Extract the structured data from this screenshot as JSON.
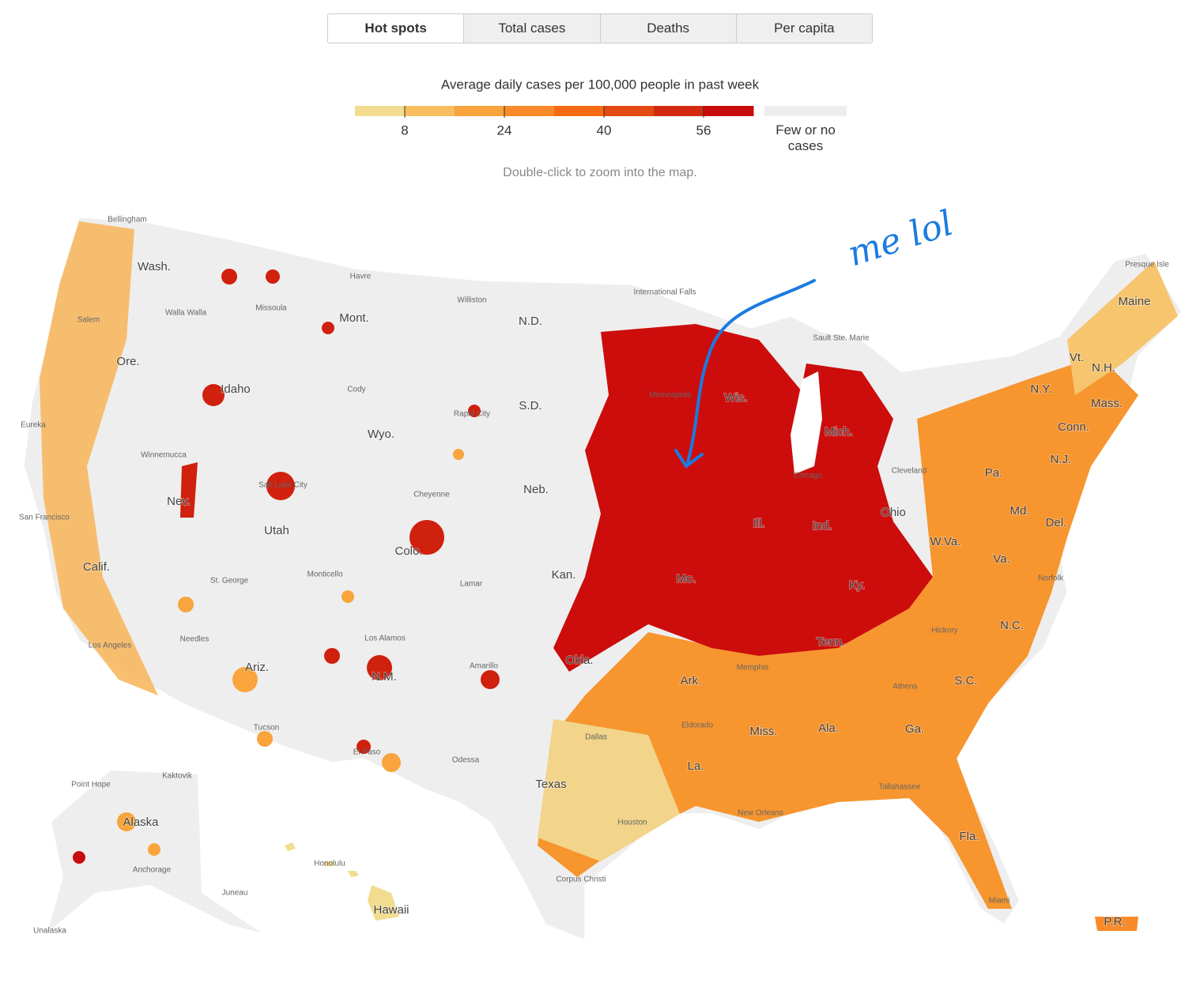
{
  "tabs": [
    "Hot spots",
    "Total cases",
    "Deaths",
    "Per capita"
  ],
  "legend": {
    "title": "Average daily cases per 100,000 people in past week",
    "colors": [
      "#f2dc8f",
      "#f7bd5e",
      "#f9a33c",
      "#f98a2a",
      "#f56a13",
      "#e34a12",
      "#d32a0f",
      "#c80c0c"
    ],
    "lim": [
      0,
      64
    ],
    "ticks": [
      8,
      24,
      40,
      56
    ],
    "no_data_label": "Few or no cases",
    "no_data_color": "#eeeeee"
  },
  "hint": "Double-click to zoom into the map.",
  "map": {
    "state_labels": [
      "Wash.",
      "Ore.",
      "Calif.",
      "Idaho",
      "Nev.",
      "Mont.",
      "Wyo.",
      "Utah",
      "Colo.",
      "Ariz.",
      "N.M.",
      "N.D.",
      "S.D.",
      "Neb.",
      "Kan.",
      "Okla.",
      "Texas",
      "Mo.",
      "Ark.",
      "La.",
      "Wis.",
      "Ill.",
      "Mich.",
      "Ind.",
      "Ohio",
      "Ky.",
      "Tenn.",
      "Miss.",
      "Ala.",
      "Ga.",
      "Fla.",
      "S.C.",
      "N.C.",
      "Va.",
      "W.Va.",
      "Md.",
      "Del.",
      "N.J.",
      "Pa.",
      "N.Y.",
      "Conn.",
      "Mass.",
      "Vt.",
      "N.H.",
      "Maine",
      "Alaska",
      "Hawaii",
      "P.R."
    ],
    "city_labels": [
      "Bellingham",
      "Salem",
      "Walla Walla",
      "Missoula",
      "Havre",
      "Williston",
      "International Falls",
      "Sault Ste. Marie",
      "Presque Isle",
      "Eureka",
      "Cody",
      "Rapid City",
      "Winnemucca",
      "Salt Lake City",
      "Cheyenne",
      "San Francisco",
      "Monticello",
      "St. George",
      "Lamar",
      "Los Angeles",
      "Needles",
      "Los Alamos",
      "Amarillo",
      "Tucson",
      "El Paso",
      "Odessa",
      "Dallas",
      "Houston",
      "Corpus Christi",
      "New Orleans",
      "Memphis",
      "Cleveland",
      "Chicago",
      "Minneapolis",
      "Norfolk",
      "Hickory",
      "Athens",
      "Tallahassee",
      "Miami",
      "Point Hope",
      "Kaktovik",
      "Anchorage",
      "Juneau",
      "Unalaska",
      "Honolulu",
      "Eldorado"
    ]
  },
  "annotation": "me lol"
}
